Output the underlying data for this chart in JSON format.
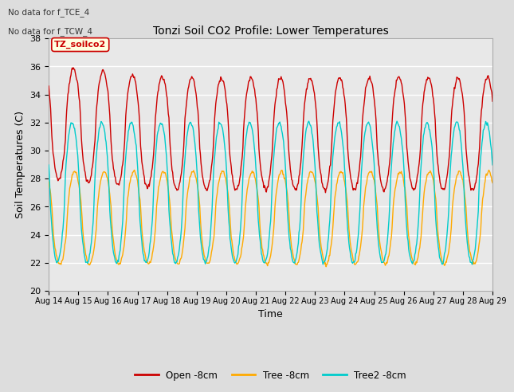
{
  "title": "Tonzi Soil CO2 Profile: Lower Temperatures",
  "xlabel": "Time",
  "ylabel": "Soil Temperatures (C)",
  "ylim": [
    20,
    38
  ],
  "yticks": [
    20,
    22,
    24,
    26,
    28,
    30,
    32,
    34,
    36,
    38
  ],
  "annotations": [
    "No data for f_TCE_4",
    "No data for f_TCW_4"
  ],
  "watermark": "TZ_soilco2",
  "fig_bg_color": "#dddddd",
  "plot_bg_color": "#e8e8e8",
  "grid_color": "#ffffff",
  "series": [
    {
      "label": "Open -8cm",
      "color": "#cc0000"
    },
    {
      "label": "Tree -8cm",
      "color": "#ffaa00"
    },
    {
      "label": "Tree2 -8cm",
      "color": "#00cccc"
    }
  ],
  "x_tick_labels": [
    "Aug 14",
    "Aug 15",
    "Aug 16",
    "Aug 17",
    "Aug 18",
    "Aug 19",
    "Aug 20",
    "Aug 21",
    "Aug 22",
    "Aug 23",
    "Aug 24",
    "Aug 25",
    "Aug 26",
    "Aug 27",
    "Aug 28",
    "Aug 29"
  ],
  "x_tick_positions": [
    0,
    48,
    96,
    144,
    192,
    240,
    288,
    336,
    384,
    432,
    480,
    528,
    576,
    624,
    672,
    720
  ],
  "num_points": 721,
  "red_base": 31.2,
  "red_amp": 4.0,
  "red_phase": 28,
  "orange_base": 25.2,
  "orange_amp": 3.3,
  "orange_phase": 30,
  "cyan_base": 27.0,
  "cyan_amp": 5.0,
  "cyan_phase": 26
}
